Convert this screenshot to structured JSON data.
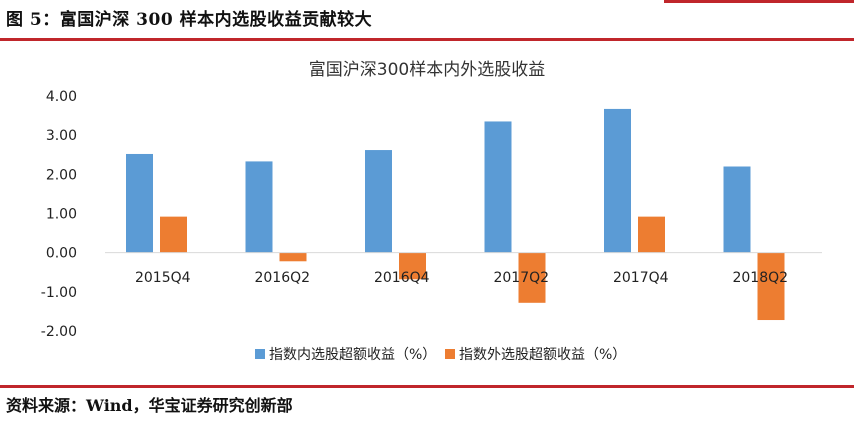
{
  "figure_title": "图 5：富国沪深 300 样本内选股收益贡献较大",
  "source": "资料来源：Wind，华宝证券研究创新部",
  "colors": {
    "accent": "#c0262b",
    "series_in": "#5b9bd5",
    "series_out": "#ed7d31"
  },
  "chart_data": {
    "type": "bar",
    "title": "富国沪深300样本内外选股收益",
    "categories": [
      "2015Q4",
      "2016Q2",
      "2016Q4",
      "2017Q2",
      "2017Q4",
      "2018Q2"
    ],
    "series": [
      {
        "name": "指数内选股超额收益（%）",
        "values": [
          2.52,
          2.33,
          2.62,
          3.35,
          3.67,
          2.2
        ]
      },
      {
        "name": "指数外选股超额收益（%）",
        "values": [
          0.92,
          -0.22,
          -0.68,
          -1.28,
          0.92,
          -1.72
        ]
      }
    ],
    "yticks": [
      "4.00",
      "3.00",
      "2.00",
      "1.00",
      "0.00",
      "-1.00",
      "-2.00"
    ],
    "ylim": [
      -2,
      4
    ],
    "xlabel": "",
    "ylabel": "",
    "grid": false,
    "legend": "bottom"
  }
}
